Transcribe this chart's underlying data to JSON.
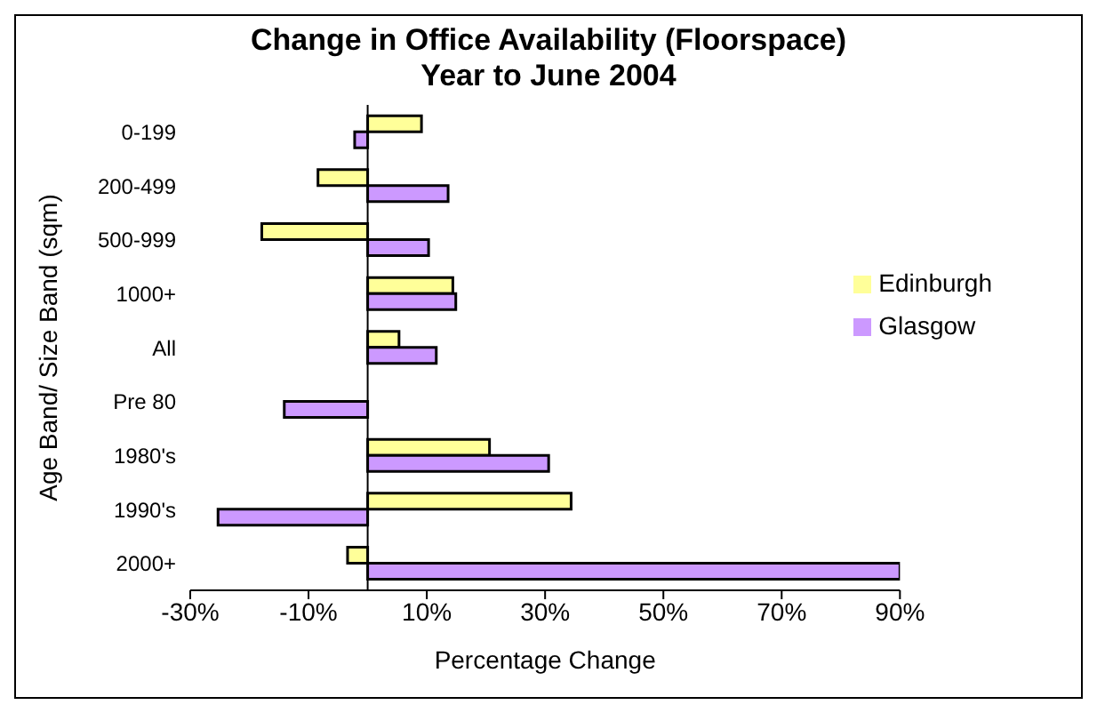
{
  "chart_data": {
    "type": "bar",
    "orientation": "horizontal",
    "title": "Change in Office Availability (Floorspace)\nYear to June 2004",
    "xlabel": "Percentage Change",
    "ylabel": "Age Band/ Size Band (sqm)",
    "categories": [
      "0-199",
      "200-499",
      "500-999",
      "1000+",
      "All",
      "Pre 80",
      "1980's",
      "1990's",
      "2000+"
    ],
    "series": [
      {
        "name": "Edinburgh",
        "color": "#ffff99",
        "values": [
          9.1,
          -8.4,
          -17.9,
          14.4,
          5.3,
          null,
          20.6,
          34.4,
          -3.4
        ]
      },
      {
        "name": "Glasgow",
        "color": "#cc99ff",
        "values": [
          -2.2,
          13.6,
          10.3,
          14.9,
          11.6,
          -14.1,
          30.6,
          -25.3,
          90
        ]
      }
    ],
    "xlim": [
      -30,
      90
    ],
    "xticks": [
      {
        "value": -30,
        "label": "-30%"
      },
      {
        "value": -10,
        "label": "-10%"
      },
      {
        "value": 10,
        "label": "10%"
      },
      {
        "value": 30,
        "label": "30%"
      },
      {
        "value": 50,
        "label": "50%"
      },
      {
        "value": 70,
        "label": "70%"
      },
      {
        "value": 90,
        "label": "90%"
      }
    ],
    "legend": "right",
    "grid": false
  }
}
